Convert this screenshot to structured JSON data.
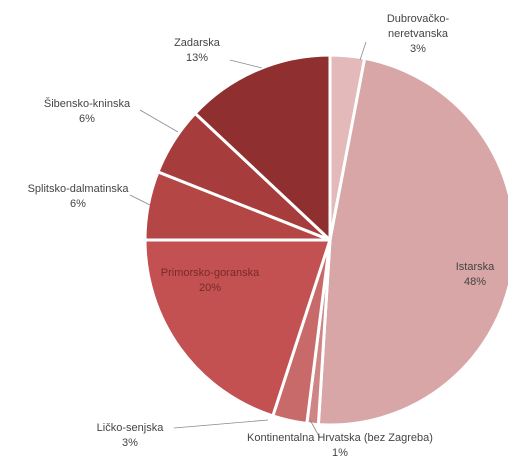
{
  "chart_data": {
    "type": "pie",
    "title": "",
    "slices": [
      {
        "name": "Dubrovačko-neretvanska",
        "name_lines": [
          "Dubrovačko-",
          "neretvanska"
        ],
        "value": 3,
        "label": "3%",
        "color": "#e4b9b9"
      },
      {
        "name": "Istarska",
        "name_lines": [
          "Istarska"
        ],
        "value": 48,
        "label": "48%",
        "color": "#d8a6a6"
      },
      {
        "name": "Kontinentalna Hrvatska (bez Zagreba)",
        "name_lines": [
          "Kontinentalna Hrvatska (bez Zagreba)"
        ],
        "value": 1,
        "label": "1%",
        "color": "#cf8585"
      },
      {
        "name": "Ličko-senjska",
        "name_lines": [
          "Ličko-senjska"
        ],
        "value": 3,
        "label": "3%",
        "color": "#c96a6a"
      },
      {
        "name": "Primorsko-goranska",
        "name_lines": [
          "Primorsko-goranska"
        ],
        "value": 20,
        "label": "20%",
        "color": "#c35151"
      },
      {
        "name": "Splitsko-dalmatinska",
        "name_lines": [
          "Splitsko-dalmatinska"
        ],
        "value": 6,
        "label": "6%",
        "color": "#b54646"
      },
      {
        "name": "Šibensko-kninska",
        "name_lines": [
          "Šibensko-kninska"
        ],
        "value": 6,
        "label": "6%",
        "color": "#a63c3c"
      },
      {
        "name": "Zadarska",
        "name_lines": [
          "Zadarska"
        ],
        "value": 13,
        "label": "13%",
        "color": "#8f2f2f"
      }
    ]
  }
}
